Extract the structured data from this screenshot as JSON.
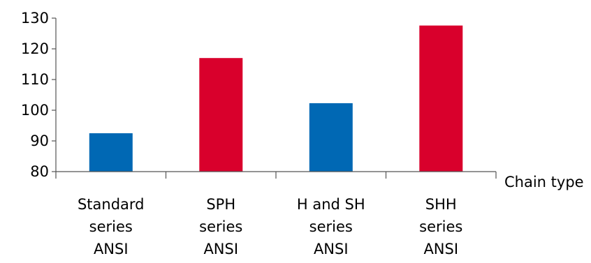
{
  "chart_data": {
    "type": "bar",
    "title": "",
    "xlabel": "Chain type",
    "ylabel": "",
    "ylim": [
      80,
      130
    ],
    "yticks": [
      "80",
      "90",
      "100",
      "110",
      "120",
      "130"
    ],
    "grid": false,
    "legend": "none",
    "categories": [
      [
        "Standard",
        "series",
        "ANSI"
      ],
      [
        "SPH",
        "series",
        "ANSI"
      ],
      [
        "H and SH",
        "series",
        "ANSI"
      ],
      [
        "SHH",
        "series",
        "ANSI"
      ]
    ],
    "values": [
      92.5,
      117,
      102.3,
      127.6
    ],
    "bar_colors": [
      "#0068b4",
      "#d9002c",
      "#0068b4",
      "#d9002c"
    ],
    "axis_color": "#555555"
  }
}
